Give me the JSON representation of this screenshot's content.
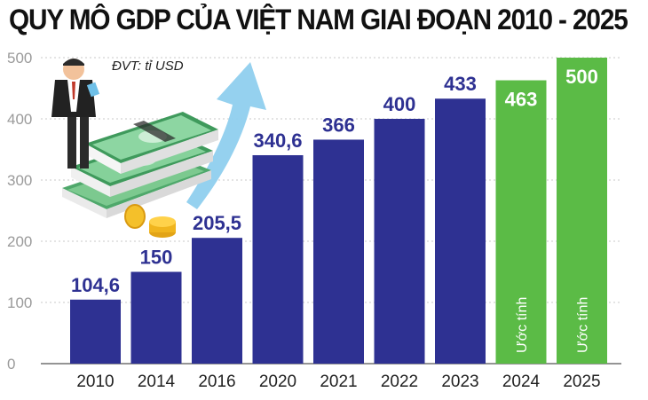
{
  "chart_data": {
    "type": "bar",
    "title": "QUY MÔ GDP CỦA VIỆT NAM GIAI ĐOẠN 2010 - 2025",
    "unit_label": "ĐVT: tỉ USD",
    "xlabel": "",
    "ylabel": "",
    "ylim": [
      0,
      500
    ],
    "yticks": [
      0,
      100,
      200,
      300,
      400,
      500
    ],
    "grid": true,
    "categories": [
      "2010",
      "2014",
      "2016",
      "2020",
      "2021",
      "2022",
      "2023",
      "2024",
      "2025"
    ],
    "values": [
      104.6,
      150,
      205.5,
      340.6,
      366,
      400,
      433,
      463,
      500
    ],
    "value_labels": [
      "104,6",
      "150",
      "205,5",
      "340,6",
      "366",
      "400",
      "433",
      "463",
      "500"
    ],
    "estimated": [
      false,
      false,
      false,
      false,
      false,
      false,
      false,
      true,
      true
    ],
    "estimate_label": "Ước tính",
    "colors": {
      "actual_bar": "#2e3192",
      "estimate_bar": "#5bbb46",
      "actual_label": "#2e3192",
      "estimate_label": "#ffffff",
      "grid": "#c9c9c9"
    }
  }
}
